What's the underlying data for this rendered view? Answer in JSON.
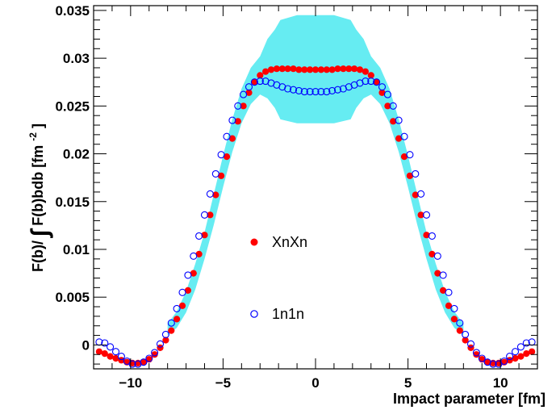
{
  "chart_data": {
    "type": "scatter",
    "title": "",
    "xlabel": "Impact parameter [fm]",
    "ylabel_parts": {
      "numerator": "F(b)/",
      "integral_sign": "∫",
      "denominator": "F(b)bdb [fm",
      "exponent": "-2",
      "close": "]"
    },
    "xlim": [
      -12,
      12
    ],
    "ylim": [
      -0.0025,
      0.0355
    ],
    "x_ticks": [
      {
        "value": -10,
        "label": "−10"
      },
      {
        "value": -5,
        "label": "−5"
      },
      {
        "value": 0,
        "label": "0"
      },
      {
        "value": 5,
        "label": "5"
      },
      {
        "value": 10,
        "label": "10"
      }
    ],
    "y_ticks": [
      {
        "value": 0,
        "label": "0"
      },
      {
        "value": 0.005,
        "label": "0.005"
      },
      {
        "value": 0.01,
        "label": "0.01"
      },
      {
        "value": 0.015,
        "label": "0.015"
      },
      {
        "value": 0.02,
        "label": "0.02"
      },
      {
        "value": 0.025,
        "label": "0.025"
      },
      {
        "value": 0.03,
        "label": "0.03"
      },
      {
        "value": 0.035,
        "label": "0.035"
      }
    ],
    "grid": false,
    "legend_position": "center",
    "band": {
      "color": "#66ecf2",
      "points": [
        {
          "x": 0.0,
          "lo": 0.0232,
          "hi": 0.0345
        },
        {
          "x": 1.0,
          "lo": 0.0232,
          "hi": 0.0345
        },
        {
          "x": 1.9,
          "lo": 0.0236,
          "hi": 0.034
        },
        {
          "x": 2.2,
          "lo": 0.0248,
          "hi": 0.033
        },
        {
          "x": 2.6,
          "lo": 0.0258,
          "hi": 0.032
        },
        {
          "x": 3.0,
          "lo": 0.0262,
          "hi": 0.0302
        },
        {
          "x": 3.5,
          "lo": 0.0252,
          "hi": 0.029
        },
        {
          "x": 4.0,
          "lo": 0.0232,
          "hi": 0.0268
        },
        {
          "x": 4.5,
          "lo": 0.0202,
          "hi": 0.0236
        },
        {
          "x": 5.0,
          "lo": 0.0165,
          "hi": 0.0198
        },
        {
          "x": 5.5,
          "lo": 0.0126,
          "hi": 0.0158
        },
        {
          "x": 6.0,
          "lo": 0.009,
          "hi": 0.0118
        },
        {
          "x": 6.5,
          "lo": 0.0058,
          "hi": 0.0085
        },
        {
          "x": 7.0,
          "lo": 0.0034,
          "hi": 0.0056
        },
        {
          "x": 7.5,
          "lo": 0.0018,
          "hi": 0.0035
        },
        {
          "x": 8.0,
          "lo": 0.001,
          "hi": 0.0022
        }
      ]
    },
    "series": [
      {
        "name": "XnXn",
        "marker": "filled-circle",
        "color": "#ff0000",
        "x": [
          0,
          0.3,
          0.6,
          0.9,
          1.2,
          1.5,
          1.8,
          2.1,
          2.4,
          2.7,
          3.0,
          3.3,
          3.6,
          3.9,
          4.2,
          4.5,
          4.8,
          5.1,
          5.4,
          5.7,
          6.0,
          6.3,
          6.6,
          6.9,
          7.2,
          7.5,
          7.8,
          8.1,
          8.4,
          8.7,
          9.0,
          9.3,
          9.6,
          9.9,
          10.2,
          10.5,
          10.8,
          11.1,
          11.4,
          11.7
        ],
        "y": [
          0.0288,
          0.0288,
          0.0288,
          0.0288,
          0.0289,
          0.0289,
          0.0289,
          0.0289,
          0.0288,
          0.0286,
          0.0282,
          0.0275,
          0.0264,
          0.025,
          0.0234,
          0.0216,
          0.0197,
          0.0177,
          0.0157,
          0.0136,
          0.0115,
          0.0095,
          0.0075,
          0.0057,
          0.0041,
          0.0027,
          0.0015,
          0.0005,
          -0.0003,
          -0.001,
          -0.0015,
          -0.0018,
          -0.0019,
          -0.0019,
          -0.0018,
          -0.0016,
          -0.0014,
          -0.0012,
          -0.0009,
          -0.0007
        ]
      },
      {
        "name": "1n1n",
        "marker": "open-circle",
        "color": "#0000ff",
        "x": [
          0,
          0.3,
          0.6,
          0.9,
          1.2,
          1.5,
          1.8,
          2.1,
          2.4,
          2.7,
          3.0,
          3.3,
          3.6,
          3.9,
          4.2,
          4.5,
          4.8,
          5.1,
          5.4,
          5.7,
          6.0,
          6.3,
          6.6,
          6.9,
          7.2,
          7.5,
          7.8,
          8.1,
          8.4,
          8.7,
          9.0,
          9.3,
          9.6,
          9.9,
          10.2,
          10.5,
          10.8,
          11.1,
          11.4,
          11.7
        ],
        "y": [
          0.0265,
          0.0265,
          0.0265,
          0.0266,
          0.0267,
          0.0268,
          0.027,
          0.0272,
          0.0274,
          0.0276,
          0.0276,
          0.0275,
          0.027,
          0.0262,
          0.025,
          0.0235,
          0.0218,
          0.0199,
          0.0179,
          0.0158,
          0.0136,
          0.0114,
          0.0093,
          0.0073,
          0.0055,
          0.0038,
          0.0023,
          0.0011,
          0.0001,
          -0.0008,
          -0.0014,
          -0.0018,
          -0.002,
          -0.002,
          -0.0017,
          -0.0012,
          -0.0007,
          -0.0002,
          0.0002,
          0.0003
        ]
      }
    ]
  }
}
